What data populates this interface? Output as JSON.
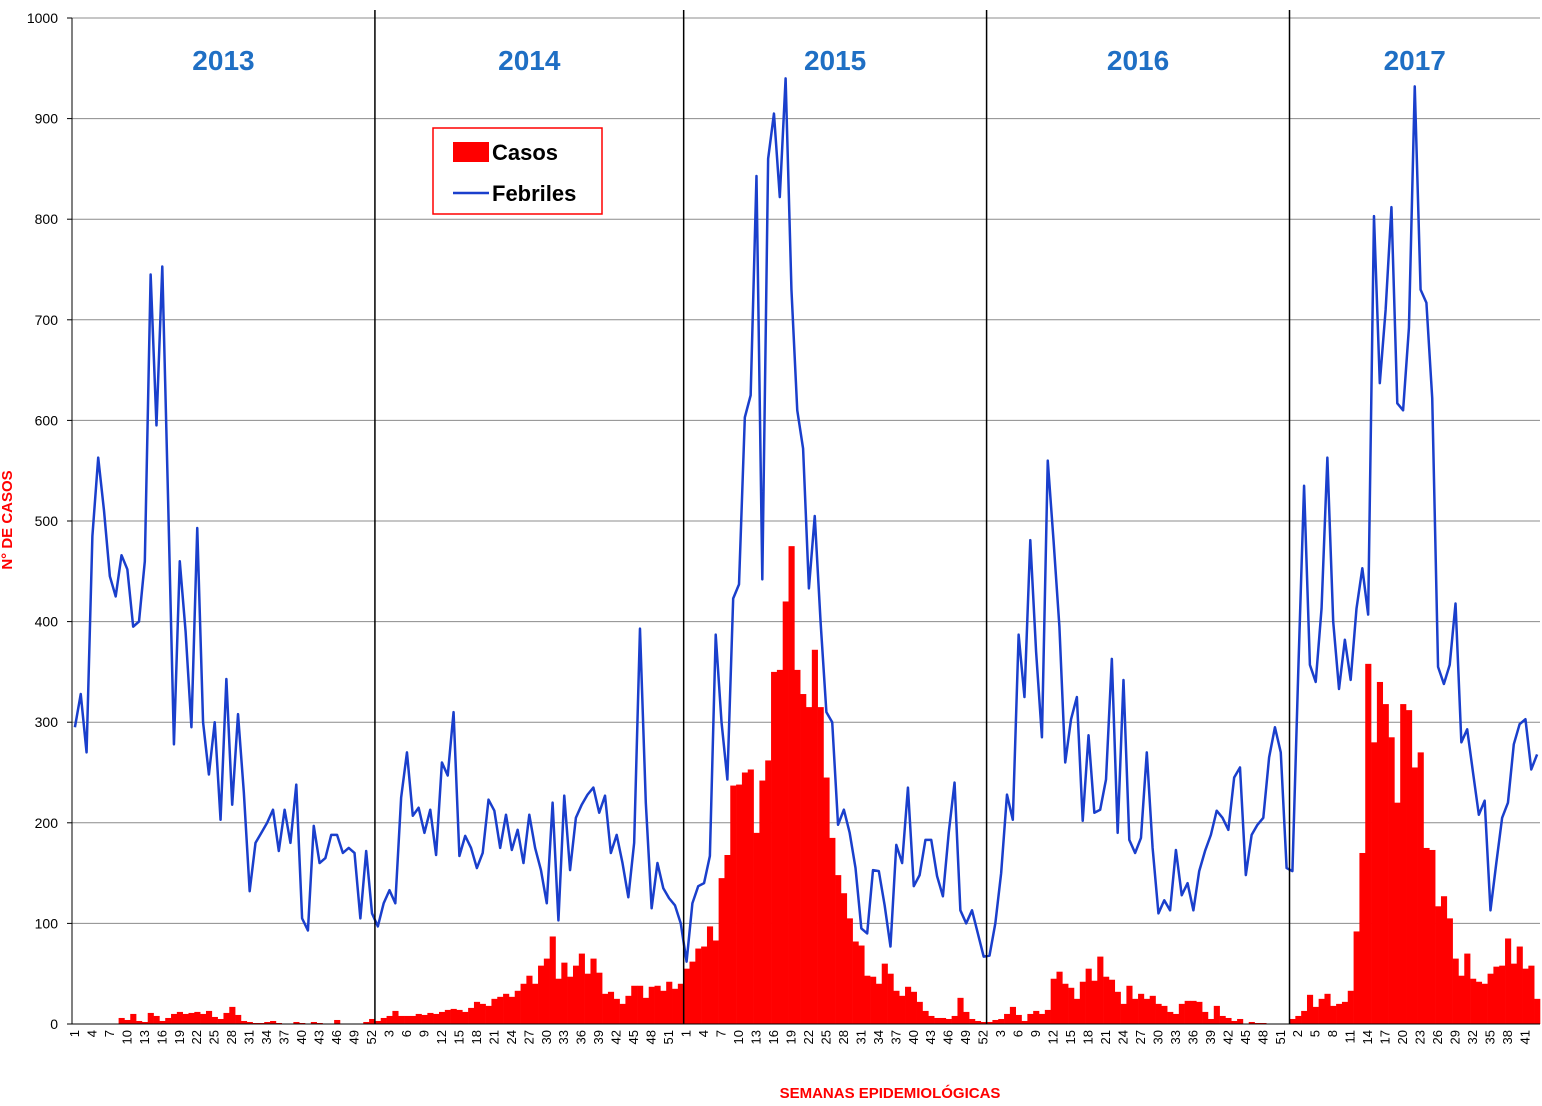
{
  "chart_data": {
    "type": "bar",
    "y_label": "N° DE CASOS",
    "x_label": "SEMANAS EPIDEMIOLÓGICAS",
    "years": [
      "2013",
      "2014",
      "2015",
      "2016",
      "2017"
    ],
    "ylim": [
      0,
      1000
    ],
    "yticks": [
      0,
      100,
      200,
      300,
      400,
      500,
      600,
      700,
      800,
      900,
      1000
    ],
    "grid": true,
    "categories": [
      "1",
      null,
      null,
      "4",
      null,
      null,
      "7",
      null,
      null,
      "10",
      null,
      null,
      "13",
      null,
      null,
      "16",
      null,
      null,
      "19",
      null,
      null,
      "22",
      null,
      null,
      "25",
      null,
      null,
      "28",
      null,
      null,
      "31",
      null,
      null,
      "34",
      null,
      null,
      "37",
      null,
      null,
      "40",
      null,
      null,
      "43",
      null,
      null,
      "46",
      null,
      null,
      "49",
      null,
      null,
      "52",
      null,
      null,
      "3",
      null,
      null,
      "6",
      null,
      null,
      "9",
      null,
      null,
      "12",
      null,
      null,
      "15",
      null,
      null,
      "18",
      null,
      null,
      "21",
      null,
      null,
      "24",
      null,
      null,
      "27",
      null,
      null,
      "30",
      null,
      null,
      "33",
      null,
      null,
      "36",
      null,
      null,
      "39",
      null,
      null,
      "42",
      null,
      null,
      "45",
      null,
      null,
      "48",
      null,
      null,
      "51",
      null,
      null,
      "1",
      null,
      null,
      "4",
      null,
      null,
      "7",
      null,
      null,
      "10",
      null,
      null,
      "13",
      null,
      null,
      "16",
      null,
      null,
      "19",
      null,
      null,
      "22",
      null,
      null,
      "25",
      null,
      null,
      "28",
      null,
      null,
      "31",
      null,
      null,
      "34",
      null,
      null,
      "37",
      null,
      null,
      "40",
      null,
      null,
      "43",
      null,
      null,
      "46",
      null,
      null,
      "49",
      null,
      null,
      "52",
      null,
      null,
      "3",
      null,
      null,
      "6",
      null,
      null,
      "9",
      null,
      null,
      "12",
      null,
      null,
      "15",
      null,
      null,
      "18",
      null,
      null,
      "21",
      null,
      null,
      "24",
      null,
      null,
      "27",
      null,
      null,
      "30",
      null,
      null,
      "33",
      null,
      null,
      "36",
      null,
      null,
      "39",
      null,
      null,
      "42",
      null,
      null,
      "45",
      null,
      null,
      "48",
      null,
      null,
      "51",
      null,
      null,
      "2",
      null,
      null,
      "5",
      null,
      null,
      "8",
      null,
      null,
      "11",
      null,
      null,
      "14",
      null,
      null,
      "17",
      null,
      null,
      "20",
      null,
      null,
      "23",
      null,
      null,
      "26",
      null,
      null,
      "29",
      null,
      null,
      "32",
      null,
      null,
      "35",
      null,
      null,
      "38",
      null,
      null,
      "41",
      null,
      null
    ],
    "series": [
      {
        "name": "Casos",
        "type": "bar",
        "color": "#ff0000",
        "values": [
          0,
          0,
          0,
          0,
          0,
          0,
          0,
          0,
          6,
          4,
          10,
          3,
          2,
          11,
          8,
          3,
          6,
          10,
          12,
          10,
          11,
          12,
          10,
          13,
          7,
          5,
          11,
          17,
          9,
          3,
          2,
          1,
          1,
          2,
          3,
          1,
          0,
          0,
          2,
          1,
          0,
          2,
          1,
          0,
          0,
          4,
          0,
          0,
          0,
          0,
          2,
          5,
          3,
          6,
          8,
          13,
          8,
          8,
          8,
          10,
          9,
          11,
          10,
          12,
          14,
          15,
          14,
          12,
          16,
          22,
          20,
          18,
          25,
          27,
          30,
          27,
          33,
          40,
          48,
          40,
          58,
          65,
          87,
          45,
          61,
          47,
          58,
          70,
          50,
          65,
          51,
          30,
          32,
          25,
          20,
          28,
          38,
          38,
          26,
          37,
          38,
          33,
          42,
          35,
          40,
          55,
          62,
          75,
          77,
          97,
          83,
          145,
          168,
          237,
          238,
          250,
          253,
          190,
          242,
          262,
          350,
          352,
          420,
          475,
          352,
          328,
          315,
          372,
          315,
          245,
          185,
          148,
          130,
          105,
          82,
          78,
          48,
          47,
          40,
          60,
          50,
          33,
          28,
          37,
          32,
          22,
          13,
          8,
          6,
          6,
          5,
          8,
          26,
          12,
          5,
          3,
          2,
          2,
          4,
          5,
          10,
          17,
          9,
          3,
          10,
          13,
          10,
          14,
          45,
          52,
          40,
          36,
          25,
          42,
          55,
          43,
          67,
          47,
          44,
          32,
          20,
          38,
          25,
          30,
          25,
          28,
          20,
          18,
          12,
          10,
          20,
          23,
          23,
          22,
          12,
          5,
          18,
          8,
          6,
          3,
          5,
          0,
          2,
          1,
          1,
          0,
          0,
          0,
          0,
          5,
          8,
          13,
          29,
          17,
          25,
          30,
          18,
          20,
          22,
          33,
          92,
          170,
          358,
          280,
          340,
          318,
          285,
          220,
          318,
          312,
          255,
          270,
          175,
          173,
          117,
          127,
          105,
          65,
          48,
          70,
          45,
          42,
          40,
          50,
          57,
          58,
          85,
          60,
          77,
          55,
          58,
          25
        ]
      },
      {
        "name": "Febriles",
        "type": "line",
        "color": "#1a3fcc",
        "values": [
          295,
          328,
          270,
          485,
          563,
          510,
          445,
          425,
          466,
          452,
          395,
          400,
          460,
          745,
          595,
          753,
          520,
          278,
          460,
          390,
          295,
          493,
          300,
          248,
          300,
          203,
          343,
          218,
          308,
          230,
          132,
          180,
          190,
          200,
          213,
          172,
          213,
          180,
          238,
          105,
          93,
          197,
          160,
          165,
          188,
          188,
          170,
          175,
          170,
          105,
          172,
          110,
          97,
          120,
          133,
          120,
          225,
          270,
          207,
          215,
          190,
          213,
          168,
          260,
          247,
          310,
          167,
          187,
          175,
          155,
          170,
          223,
          212,
          175,
          208,
          173,
          193,
          160,
          208,
          175,
          153,
          120,
          220,
          103,
          227,
          153,
          205,
          218,
          228,
          235,
          210,
          227,
          170,
          188,
          160,
          126,
          180,
          393,
          220,
          115,
          160,
          135,
          125,
          118,
          100,
          62,
          120,
          137,
          140,
          167,
          387,
          300,
          243,
          423,
          437,
          603,
          625,
          843,
          442,
          860,
          905,
          822,
          940,
          730,
          610,
          572,
          433,
          505,
          400,
          310,
          300,
          198,
          213,
          190,
          155,
          95,
          90,
          153,
          152,
          118,
          77,
          178,
          160,
          235,
          137,
          148,
          183,
          183,
          147,
          127,
          190,
          240,
          113,
          100,
          113,
          90,
          67,
          68,
          100,
          150,
          228,
          203,
          387,
          325,
          481,
          370,
          285,
          560,
          480,
          395,
          260,
          303,
          325,
          202,
          287,
          210,
          213,
          243,
          363,
          190,
          342,
          183,
          170,
          185,
          270,
          175,
          110,
          123,
          113,
          173,
          128,
          140,
          113,
          152,
          172,
          188,
          212,
          205,
          193,
          245,
          255,
          148,
          188,
          198,
          205,
          265,
          295,
          270,
          155,
          152,
          350,
          535,
          357,
          340,
          413,
          563,
          400,
          333,
          382,
          342,
          413,
          453,
          407,
          803,
          637,
          710,
          812,
          617,
          610,
          692,
          932,
          730,
          717,
          622,
          355,
          338,
          357,
          418,
          280,
          293,
          250,
          208,
          222,
          113,
          160,
          205,
          220,
          278,
          298,
          303,
          253,
          268
        ]
      }
    ]
  }
}
